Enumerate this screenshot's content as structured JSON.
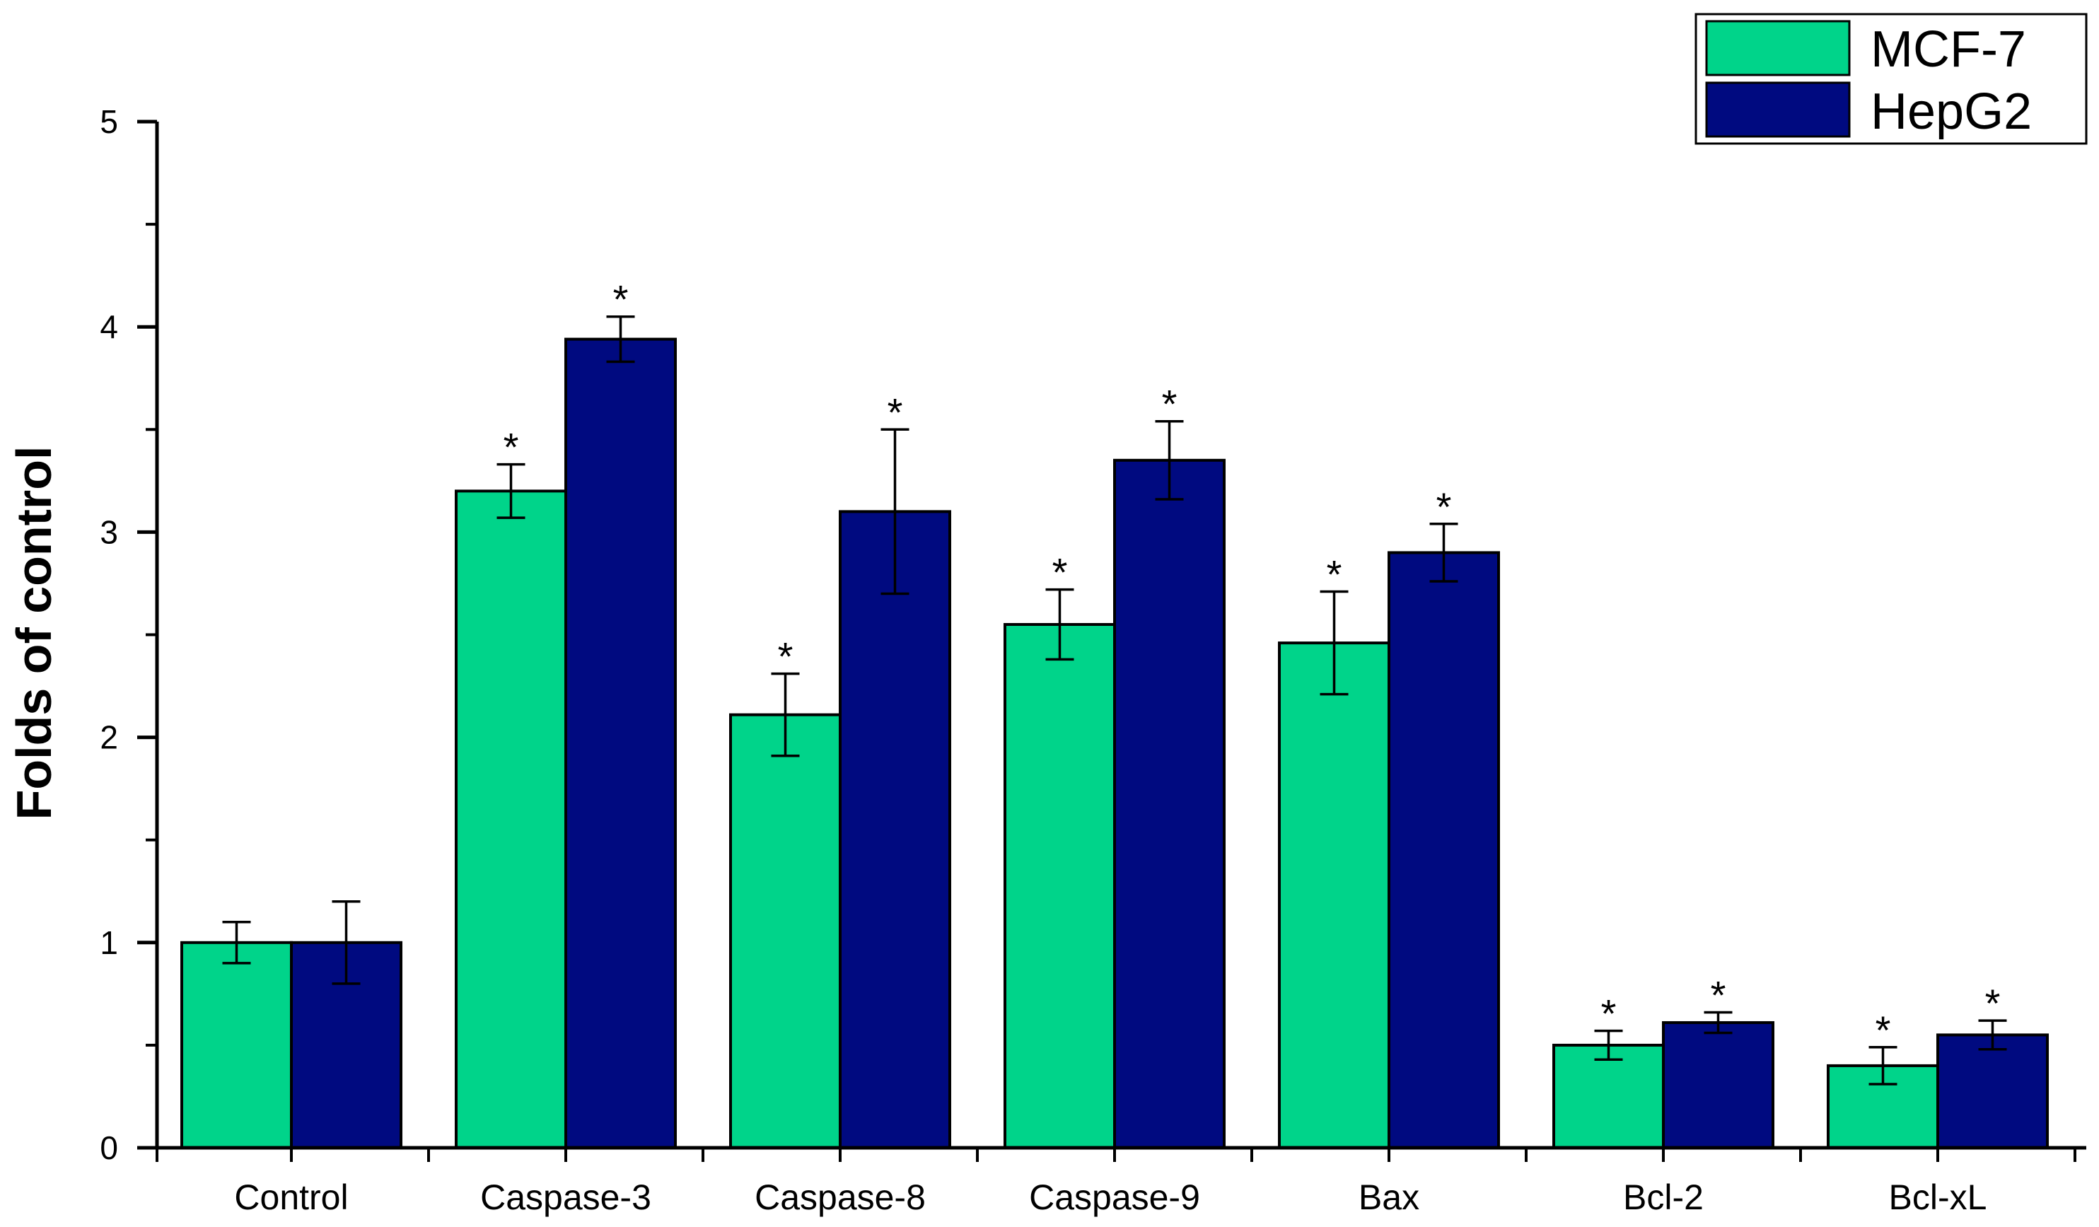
{
  "chart_data": {
    "type": "bar",
    "ylabel": "Folds of control",
    "xlabel": "",
    "ylim": [
      0,
      5
    ],
    "yticks": [
      "0",
      "1",
      "2",
      "3",
      "4",
      "5"
    ],
    "categories": [
      "Control",
      "Caspase-3",
      "Caspase-8",
      "Caspase-9",
      "Bax",
      "Bcl-2",
      "Bcl-xL"
    ],
    "series": [
      {
        "name": "MCF-7",
        "color": "#00d48a",
        "values": [
          1.0,
          3.2,
          2.11,
          2.55,
          2.46,
          0.5,
          0.4
        ],
        "errors": [
          0.1,
          0.13,
          0.2,
          0.17,
          0.25,
          0.07,
          0.09
        ],
        "significant": [
          false,
          true,
          true,
          true,
          true,
          true,
          true
        ]
      },
      {
        "name": "HepG2",
        "color": "#000a80",
        "values": [
          1.0,
          3.94,
          3.1,
          3.35,
          2.9,
          0.61,
          0.55
        ],
        "errors": [
          0.2,
          0.11,
          0.4,
          0.19,
          0.14,
          0.05,
          0.07
        ],
        "significant": [
          false,
          true,
          true,
          true,
          true,
          true,
          true
        ]
      }
    ],
    "significance_marker": "*",
    "legend_position": "top-right"
  }
}
